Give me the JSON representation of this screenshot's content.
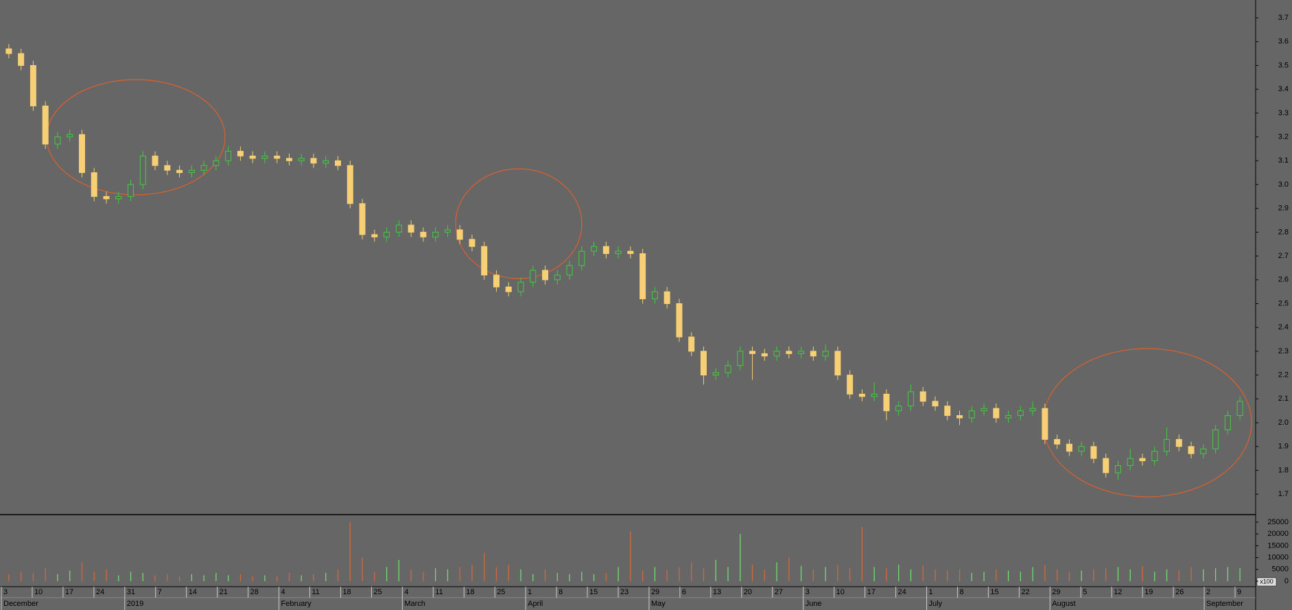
{
  "chart_data": {
    "type": "candlestick",
    "up_color": "#3fcf3f",
    "down_color": "#f7cf74",
    "ylim": [
      1.614,
      3.775
    ],
    "yticks": [
      {
        "value": 1.7,
        "label": "1.7"
      },
      {
        "value": 1.8,
        "label": "1.8"
      },
      {
        "value": 1.9,
        "label": "1.9"
      },
      {
        "value": 2,
        "label": "2.0"
      },
      {
        "value": 2.1,
        "label": "2.1"
      },
      {
        "value": 2.2,
        "label": "2.2"
      },
      {
        "value": 2.3,
        "label": "2.3"
      },
      {
        "value": 2.4,
        "label": "2.4"
      },
      {
        "value": 2.5,
        "label": "2.5"
      },
      {
        "value": 2.6,
        "label": "2.6"
      },
      {
        "value": 2.7,
        "label": "2.7"
      },
      {
        "value": 2.8,
        "label": "2.8"
      },
      {
        "value": 2.9,
        "label": "2.9"
      },
      {
        "value": 3,
        "label": "3.0"
      },
      {
        "value": 3.1,
        "label": "3.1"
      },
      {
        "value": 3.2,
        "label": "3.2"
      },
      {
        "value": 3.3,
        "label": "3.3"
      },
      {
        "value": 3.4,
        "label": "3.4"
      },
      {
        "value": 3.5,
        "label": "3.5"
      },
      {
        "value": 3.6,
        "label": "3.6"
      },
      {
        "value": 3.7,
        "label": "3.7"
      }
    ],
    "candles": [
      [
        3.57,
        3.59,
        3.53,
        3.55
      ],
      [
        3.55,
        3.57,
        3.48,
        3.5
      ],
      [
        3.5,
        3.52,
        3.31,
        3.33
      ],
      [
        3.33,
        3.35,
        3.15,
        3.17
      ],
      [
        3.17,
        3.22,
        3.15,
        3.2
      ],
      [
        3.2,
        3.23,
        3.18,
        3.21
      ],
      [
        3.21,
        3.23,
        3.03,
        3.05
      ],
      [
        3.05,
        3.07,
        2.93,
        2.95
      ],
      [
        2.95,
        2.97,
        2.92,
        2.94
      ],
      [
        2.94,
        2.97,
        2.92,
        2.95
      ],
      [
        2.95,
        3.02,
        2.93,
        3.0
      ],
      [
        3.0,
        3.14,
        2.98,
        3.12
      ],
      [
        3.12,
        3.14,
        3.06,
        3.08
      ],
      [
        3.08,
        3.1,
        3.04,
        3.06
      ],
      [
        3.06,
        3.08,
        3.03,
        3.05
      ],
      [
        3.05,
        3.08,
        3.03,
        3.06
      ],
      [
        3.06,
        3.1,
        3.04,
        3.08
      ],
      [
        3.08,
        3.12,
        3.06,
        3.1
      ],
      [
        3.1,
        3.16,
        3.08,
        3.14
      ],
      [
        3.14,
        3.16,
        3.1,
        3.12
      ],
      [
        3.12,
        3.14,
        3.09,
        3.11
      ],
      [
        3.11,
        3.14,
        3.09,
        3.12
      ],
      [
        3.12,
        3.14,
        3.09,
        3.11
      ],
      [
        3.11,
        3.13,
        3.08,
        3.1
      ],
      [
        3.1,
        3.13,
        3.08,
        3.11
      ],
      [
        3.11,
        3.13,
        3.07,
        3.09
      ],
      [
        3.09,
        3.12,
        3.07,
        3.1
      ],
      [
        3.1,
        3.12,
        3.06,
        3.08
      ],
      [
        3.08,
        3.1,
        2.9,
        2.92
      ],
      [
        2.92,
        2.94,
        2.77,
        2.79
      ],
      [
        2.79,
        2.81,
        2.76,
        2.78
      ],
      [
        2.78,
        2.82,
        2.76,
        2.8
      ],
      [
        2.8,
        2.85,
        2.78,
        2.83
      ],
      [
        2.83,
        2.85,
        2.78,
        2.8
      ],
      [
        2.8,
        2.82,
        2.76,
        2.78
      ],
      [
        2.78,
        2.82,
        2.76,
        2.8
      ],
      [
        2.8,
        2.83,
        2.78,
        2.81
      ],
      [
        2.81,
        2.83,
        2.75,
        2.77
      ],
      [
        2.77,
        2.79,
        2.72,
        2.74
      ],
      [
        2.74,
        2.76,
        2.6,
        2.62
      ],
      [
        2.62,
        2.64,
        2.55,
        2.57
      ],
      [
        2.57,
        2.59,
        2.53,
        2.55
      ],
      [
        2.55,
        2.61,
        2.53,
        2.59
      ],
      [
        2.59,
        2.66,
        2.57,
        2.64
      ],
      [
        2.64,
        2.66,
        2.58,
        2.6
      ],
      [
        2.6,
        2.64,
        2.58,
        2.62
      ],
      [
        2.62,
        2.68,
        2.6,
        2.66
      ],
      [
        2.66,
        2.74,
        2.64,
        2.72
      ],
      [
        2.72,
        2.76,
        2.7,
        2.74
      ],
      [
        2.74,
        2.76,
        2.69,
        2.71
      ],
      [
        2.71,
        2.74,
        2.69,
        2.72
      ],
      [
        2.72,
        2.74,
        2.69,
        2.71
      ],
      [
        2.71,
        2.73,
        2.5,
        2.52
      ],
      [
        2.52,
        2.57,
        2.5,
        2.55
      ],
      [
        2.55,
        2.57,
        2.48,
        2.5
      ],
      [
        2.5,
        2.52,
        2.34,
        2.36
      ],
      [
        2.36,
        2.38,
        2.28,
        2.3
      ],
      [
        2.3,
        2.32,
        2.16,
        2.2
      ],
      [
        2.2,
        2.23,
        2.18,
        2.21
      ],
      [
        2.21,
        2.26,
        2.19,
        2.24
      ],
      [
        2.24,
        2.32,
        2.22,
        2.3
      ],
      [
        2.3,
        2.32,
        2.18,
        2.29
      ],
      [
        2.29,
        2.31,
        2.26,
        2.28
      ],
      [
        2.28,
        2.32,
        2.26,
        2.3
      ],
      [
        2.3,
        2.32,
        2.27,
        2.29
      ],
      [
        2.29,
        2.32,
        2.27,
        2.3
      ],
      [
        2.3,
        2.32,
        2.26,
        2.28
      ],
      [
        2.28,
        2.33,
        2.26,
        2.3
      ],
      [
        2.3,
        2.32,
        2.18,
        2.2
      ],
      [
        2.2,
        2.22,
        2.1,
        2.12
      ],
      [
        2.12,
        2.14,
        2.09,
        2.11
      ],
      [
        2.11,
        2.17,
        2.09,
        2.12
      ],
      [
        2.12,
        2.14,
        2.01,
        2.05
      ],
      [
        2.05,
        2.09,
        2.03,
        2.07
      ],
      [
        2.07,
        2.16,
        2.05,
        2.13
      ],
      [
        2.13,
        2.15,
        2.07,
        2.09
      ],
      [
        2.09,
        2.11,
        2.05,
        2.07
      ],
      [
        2.07,
        2.09,
        2.01,
        2.03
      ],
      [
        2.03,
        2.05,
        1.99,
        2.02
      ],
      [
        2.02,
        2.07,
        2.0,
        2.05
      ],
      [
        2.05,
        2.08,
        2.03,
        2.06
      ],
      [
        2.06,
        2.08,
        2.0,
        2.02
      ],
      [
        2.02,
        2.05,
        2.0,
        2.03
      ],
      [
        2.03,
        2.07,
        2.01,
        2.05
      ],
      [
        2.05,
        2.09,
        2.03,
        2.06
      ],
      [
        2.06,
        2.08,
        1.91,
        1.93
      ],
      [
        1.93,
        1.95,
        1.89,
        1.91
      ],
      [
        1.91,
        1.93,
        1.86,
        1.88
      ],
      [
        1.88,
        1.92,
        1.86,
        1.9
      ],
      [
        1.9,
        1.92,
        1.83,
        1.85
      ],
      [
        1.85,
        1.87,
        1.77,
        1.79
      ],
      [
        1.79,
        1.84,
        1.76,
        1.82
      ],
      [
        1.82,
        1.89,
        1.8,
        1.85
      ],
      [
        1.85,
        1.87,
        1.82,
        1.84
      ],
      [
        1.84,
        1.9,
        1.82,
        1.88
      ],
      [
        1.88,
        1.98,
        1.86,
        1.93
      ],
      [
        1.93,
        1.95,
        1.88,
        1.9
      ],
      [
        1.9,
        1.92,
        1.85,
        1.87
      ],
      [
        1.87,
        1.91,
        1.85,
        1.89
      ],
      [
        1.89,
        1.99,
        1.87,
        1.97
      ],
      [
        1.97,
        2.05,
        1.95,
        2.03
      ],
      [
        2.03,
        2.11,
        2.01,
        2.09
      ]
    ],
    "volume": {
      "multiplier_label": "x100",
      "ylim": [
        0,
        27600
      ],
      "yticks": [
        0,
        5000,
        10000,
        15000,
        20000,
        25000
      ],
      "values": [
        3000,
        4000,
        3500,
        5500,
        3000,
        4500,
        8000,
        4000,
        5000,
        2500,
        4000,
        3500,
        2500,
        3000,
        2000,
        3000,
        2500,
        3500,
        2500,
        3000,
        2000,
        2500,
        2000,
        3500,
        2500,
        3000,
        3500,
        5000,
        25000,
        10000,
        4000,
        6000,
        9000,
        5000,
        4000,
        5500,
        5000,
        6000,
        7000,
        12000,
        6000,
        7000,
        5000,
        3000,
        5000,
        3500,
        3000,
        4000,
        3000,
        3500,
        6000,
        21000,
        4500,
        6000,
        5000,
        6000,
        8000,
        5500,
        9000,
        6000,
        20000,
        7000,
        5000,
        8000,
        10000,
        6500,
        5000,
        6000,
        7000,
        5500,
        23000,
        6000,
        5500,
        7000,
        5000,
        6500,
        5000,
        4500,
        5000,
        3500,
        4000,
        5000,
        4500,
        4000,
        6000,
        7000,
        5000,
        4000,
        4500,
        5000,
        5500,
        6000,
        5000,
        6500,
        4000,
        5000,
        4500,
        6000,
        5000,
        5500,
        6000,
        5500
      ]
    },
    "weeks": [
      "3",
      "10",
      "17",
      "24",
      "31",
      "7",
      "14",
      "21",
      "28",
      "4",
      "11",
      "18",
      "25",
      "4",
      "11",
      "18",
      "25",
      "1",
      "8",
      "15",
      "23",
      "29",
      "6",
      "13",
      "20",
      "27",
      "3",
      "10",
      "17",
      "24",
      "1",
      "8",
      "15",
      "22",
      "29",
      "5",
      "12",
      "19",
      "26",
      "2",
      "9"
    ],
    "months": [
      {
        "label": "December",
        "week": 0
      },
      {
        "label": "2019",
        "week": 4
      },
      {
        "label": "February",
        "week": 9
      },
      {
        "label": "March",
        "week": 13
      },
      {
        "label": "April",
        "week": 17
      },
      {
        "label": "May",
        "week": 21
      },
      {
        "label": "June",
        "week": 26
      },
      {
        "label": "July",
        "week": 30
      },
      {
        "label": "August",
        "week": 34
      },
      {
        "label": "September",
        "week": 39
      }
    ]
  }
}
